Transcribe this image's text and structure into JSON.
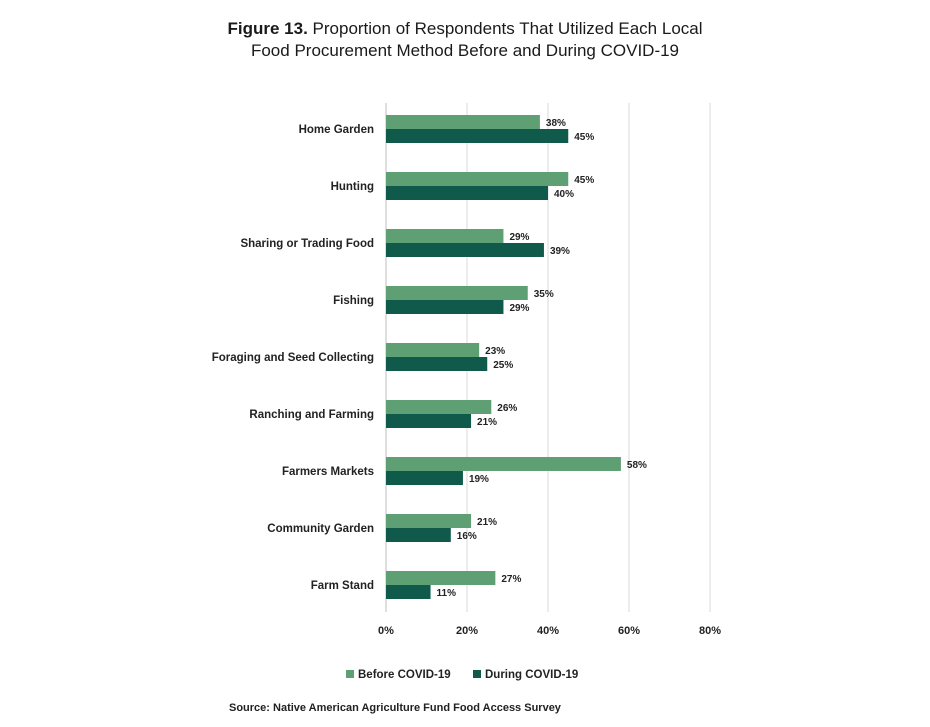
{
  "figure": {
    "title_lead": "Figure 13.",
    "title_line1": "Proportion of Respondents That Utilized Each Local",
    "title_line2": "Food Procurement Method Before and During COVID-19",
    "source": "Source: Native American Agriculture Fund Food Access Survey"
  },
  "colors": {
    "before": "#5f9f74",
    "during": "#0f5a4b",
    "grid": "#d9d9d9",
    "axis": "#bfbfbf"
  },
  "chart_data": {
    "type": "bar",
    "orientation": "horizontal",
    "title": "Figure 13. Proportion of Respondents That Utilized Each Local Food Procurement Method Before and During COVID-19",
    "categories": [
      "Home Garden",
      "Hunting",
      "Sharing or Trading Food",
      "Fishing",
      "Foraging and Seed Collecting",
      "Ranching and Farming",
      "Farmers Markets",
      "Community Garden",
      "Farm Stand"
    ],
    "series": [
      {
        "name": "Before COVID-19",
        "values": [
          38,
          45,
          29,
          35,
          23,
          26,
          58,
          21,
          27
        ],
        "labels": [
          "38%",
          "45%",
          "29%",
          "35%",
          "23%",
          "26%",
          "58%",
          "21%",
          "27%"
        ]
      },
      {
        "name": "During COVID-19",
        "values": [
          45,
          40,
          39,
          29,
          25,
          21,
          19,
          16,
          11
        ],
        "labels": [
          "45%",
          "40%",
          "39%",
          "29%",
          "25%",
          "21%",
          "19%",
          "16%",
          "11%"
        ]
      }
    ],
    "xlim": [
      0,
      80
    ],
    "xticks": [
      0,
      20,
      40,
      60,
      80
    ],
    "xtick_labels": [
      "0%",
      "20%",
      "40%",
      "60%",
      "80%"
    ],
    "xlabel": "",
    "ylabel": "",
    "grid": true,
    "legend_position": "bottom"
  }
}
